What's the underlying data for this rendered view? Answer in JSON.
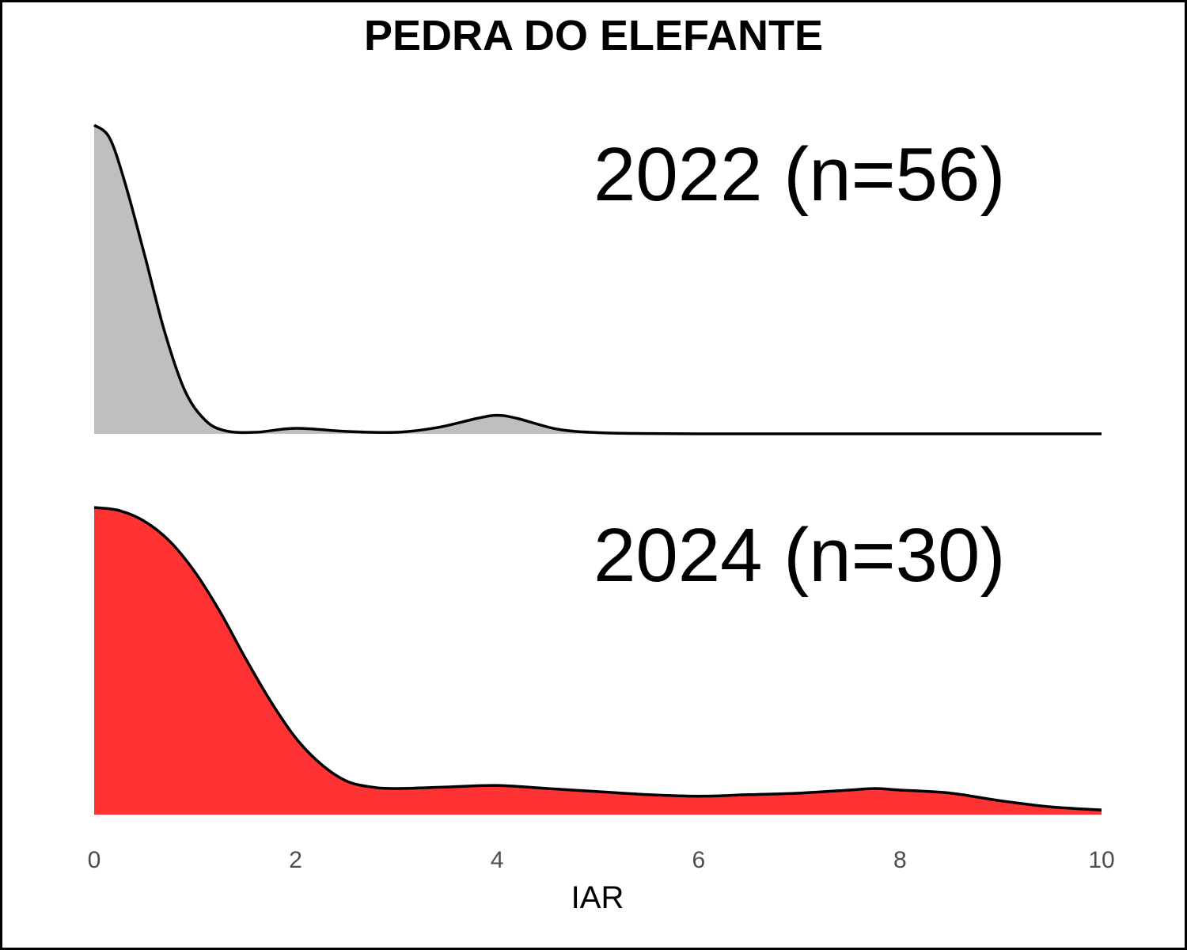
{
  "chart_data": {
    "type": "area",
    "subtype": "ridgeline-density",
    "title": "PEDRA DO ELEFANTE",
    "xlabel": "IAR",
    "ylabel": "",
    "xlim": [
      0,
      10
    ],
    "x_ticks": [
      "0",
      "2",
      "4",
      "6",
      "8",
      "10"
    ],
    "grid": false,
    "legend": "none",
    "series": [
      {
        "name": "2022 (n=56)",
        "color": "#bfbfbf",
        "x": [
          0,
          0.15,
          0.3,
          0.5,
          0.7,
          0.9,
          1.1,
          1.3,
          1.6,
          2.0,
          2.5,
          3.0,
          3.4,
          3.8,
          4.0,
          4.2,
          4.6,
          5.0,
          5.5,
          6.0,
          7.0,
          8.0,
          9.0,
          10.0
        ],
        "density": [
          1.0,
          0.96,
          0.82,
          0.58,
          0.33,
          0.14,
          0.045,
          0.01,
          0.005,
          0.018,
          0.008,
          0.005,
          0.02,
          0.05,
          0.06,
          0.05,
          0.015,
          0.004,
          0.001,
          0.0,
          0.0,
          0.0,
          0.0,
          0.0
        ]
      },
      {
        "name": "2024 (n=30)",
        "color": "#ff3333",
        "x": [
          0,
          0.25,
          0.5,
          0.75,
          1.0,
          1.25,
          1.5,
          1.75,
          2.0,
          2.25,
          2.5,
          2.75,
          3.0,
          3.5,
          4.0,
          4.5,
          5.0,
          5.5,
          6.0,
          6.5,
          7.0,
          7.5,
          7.75,
          8.0,
          8.5,
          9.0,
          9.5,
          10.0
        ],
        "density": [
          1.0,
          0.99,
          0.955,
          0.89,
          0.79,
          0.66,
          0.51,
          0.37,
          0.25,
          0.165,
          0.11,
          0.09,
          0.085,
          0.09,
          0.095,
          0.085,
          0.075,
          0.065,
          0.06,
          0.065,
          0.07,
          0.08,
          0.085,
          0.08,
          0.07,
          0.045,
          0.025,
          0.015
        ]
      }
    ]
  },
  "frame_color": "#000000",
  "line_color": "#000000"
}
